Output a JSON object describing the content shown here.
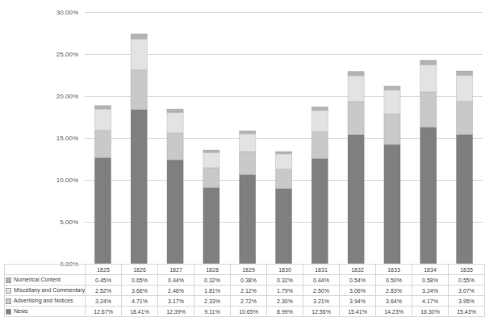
{
  "chart_data": {
    "type": "bar",
    "stacked": true,
    "grid": true,
    "categories": [
      "1825",
      "1826",
      "1827",
      "1828",
      "1829",
      "1830",
      "1831",
      "1832",
      "1833",
      "1834",
      "1835"
    ],
    "ylim": [
      0,
      30
    ],
    "yticks": [
      {
        "value": 0,
        "label": "0.00%"
      },
      {
        "value": 5,
        "label": "5.00%"
      },
      {
        "value": 10,
        "label": "10.00%"
      },
      {
        "value": 15,
        "label": "15.00%"
      },
      {
        "value": 20,
        "label": "20.00%"
      },
      {
        "value": 25,
        "label": "25.00%"
      },
      {
        "value": 30,
        "label": "30.00%"
      }
    ],
    "series": [
      {
        "name": "News",
        "color": "#7f7f7f",
        "values": [
          12.67,
          18.41,
          12.39,
          9.11,
          10.65,
          8.99,
          12.56,
          15.41,
          14.23,
          16.3,
          15.43
        ],
        "value_labels": [
          "12.67%",
          "18.41%",
          "12.39%",
          "9.11%",
          "10.65%",
          "8.99%",
          "12.56%",
          "15.41%",
          "14.23%",
          "16.30%",
          "15.43%"
        ]
      },
      {
        "name": "Advertising and Notices",
        "color": "#c9c9c9",
        "values": [
          3.24,
          4.71,
          3.17,
          2.33,
          2.72,
          2.3,
          3.21,
          3.94,
          3.64,
          4.17,
          3.95
        ],
        "value_labels": [
          "3.24%",
          "4.71%",
          "3.17%",
          "2.33%",
          "2.72%",
          "2.30%",
          "3.21%",
          "3.94%",
          "3.64%",
          "4.17%",
          "3.95%"
        ]
      },
      {
        "name": "Miscellany and Commentary",
        "color": "#e3e3e3",
        "values": [
          2.52,
          3.66,
          2.46,
          1.81,
          2.12,
          1.79,
          2.5,
          3.06,
          2.83,
          3.24,
          3.07
        ],
        "value_labels": [
          "2.52%",
          "3.66%",
          "2.46%",
          "1.81%",
          "2.12%",
          "1.79%",
          "2.50%",
          "3.06%",
          "2.83%",
          "3.24%",
          "3.07%"
        ]
      },
      {
        "name": "Numerical Content",
        "color": "#b3b3b3",
        "values": [
          0.45,
          0.65,
          0.44,
          0.32,
          0.38,
          0.32,
          0.44,
          0.54,
          0.5,
          0.58,
          0.55
        ],
        "value_labels": [
          "0.45%",
          "0.65%",
          "0.44%",
          "0.32%",
          "0.38%",
          "0.32%",
          "0.44%",
          "0.54%",
          "0.50%",
          "0.58%",
          "0.55%"
        ]
      }
    ]
  }
}
